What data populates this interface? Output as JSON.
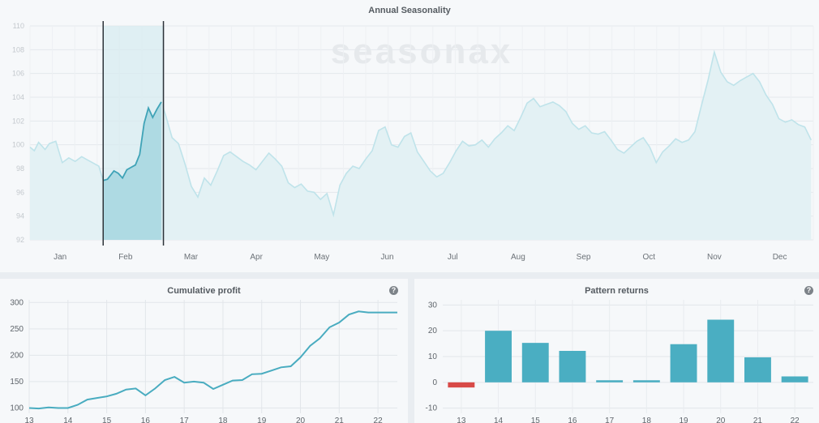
{
  "top_chart": {
    "title": "Annual Seasonality",
    "watermark": "seasonax",
    "chart_data": {
      "type": "line",
      "title": "Annual Seasonality",
      "x_ticks": [
        "Jan",
        "Feb",
        "Mar",
        "Apr",
        "May",
        "Jun",
        "Jul",
        "Aug",
        "Sep",
        "Oct",
        "Nov",
        "Dec"
      ],
      "y_ticks": [
        92,
        94,
        96,
        98,
        100,
        102,
        104,
        106,
        108,
        110
      ],
      "ylim": [
        92,
        110
      ],
      "xlim": [
        1,
        365
      ],
      "grid": true,
      "highlight_range": [
        35,
        63
      ],
      "series_x": [
        1,
        3,
        5,
        8,
        10,
        13,
        16,
        19,
        22,
        25,
        27,
        30,
        33,
        35,
        37,
        40,
        42,
        44,
        46,
        48,
        50,
        52,
        54,
        56,
        58,
        60,
        62,
        64,
        67,
        70,
        73,
        76,
        79,
        82,
        85,
        88,
        91,
        94,
        97,
        100,
        103,
        106,
        109,
        112,
        115,
        118,
        121,
        124,
        127,
        130,
        133,
        136,
        139,
        142,
        145,
        148,
        151,
        154,
        157,
        160,
        163,
        166,
        169,
        172,
        175,
        178,
        181,
        184,
        187,
        190,
        193,
        196,
        199,
        202,
        205,
        208,
        211,
        214,
        217,
        220,
        223,
        226,
        229,
        232,
        235,
        238,
        241,
        244,
        247,
        250,
        253,
        256,
        259,
        262,
        265,
        268,
        271,
        274,
        277,
        280,
        283,
        286,
        289,
        292,
        295,
        298,
        301,
        304,
        307,
        310,
        313,
        316,
        319,
        322,
        325,
        328,
        331,
        334,
        337,
        340,
        343,
        346,
        349,
        352,
        355,
        358,
        361,
        364
      ],
      "series_y": [
        99.8,
        99.5,
        100.2,
        99.6,
        100.1,
        100.3,
        98.5,
        98.9,
        98.6,
        99.0,
        98.8,
        98.5,
        98.2,
        97.0,
        97.1,
        97.8,
        97.6,
        97.2,
        97.9,
        98.1,
        98.3,
        99.2,
        101.8,
        103.1,
        102.3,
        103.0,
        103.6,
        102.5,
        100.6,
        100.1,
        98.4,
        96.5,
        95.6,
        97.2,
        96.6,
        97.8,
        99.1,
        99.4,
        99.0,
        98.6,
        98.3,
        97.9,
        98.6,
        99.3,
        98.8,
        98.2,
        96.8,
        96.4,
        96.7,
        96.1,
        96.0,
        95.4,
        95.9,
        94.1,
        96.6,
        97.6,
        98.2,
        98.0,
        98.8,
        99.5,
        101.2,
        101.5,
        100.0,
        99.8,
        100.7,
        101.0,
        99.4,
        98.6,
        97.8,
        97.3,
        97.6,
        98.5,
        99.5,
        100.3,
        99.9,
        100.0,
        100.4,
        99.8,
        100.5,
        101.0,
        101.6,
        101.2,
        102.3,
        103.5,
        103.9,
        103.2,
        103.4,
        103.6,
        103.3,
        102.8,
        101.8,
        101.3,
        101.6,
        101.0,
        100.9,
        101.1,
        100.4,
        99.6,
        99.3,
        99.8,
        100.3,
        100.6,
        99.8,
        98.5,
        99.4,
        99.9,
        100.5,
        100.2,
        100.4,
        101.1,
        103.3,
        105.4,
        107.8,
        106.1,
        105.3,
        105.0,
        105.4,
        105.7,
        106.0,
        105.3,
        104.2,
        103.4,
        102.2,
        101.9,
        102.1,
        101.7,
        101.5,
        100.4
      ]
    }
  },
  "cumulative": {
    "title": "Cumulative profit",
    "help_icon": "question-circle-icon",
    "chart_data": {
      "type": "line",
      "title": "Cumulative profit",
      "x_ticks": [
        "13",
        "14",
        "15",
        "16",
        "17",
        "18",
        "19",
        "20",
        "21",
        "22"
      ],
      "y_ticks": [
        100,
        150,
        200,
        250,
        300
      ],
      "ylim": [
        90,
        305
      ],
      "xlim": [
        13,
        22.5
      ],
      "grid": true,
      "x": [
        13,
        13.25,
        13.5,
        13.75,
        14,
        14.25,
        14.5,
        14.75,
        15,
        15.25,
        15.5,
        15.75,
        16,
        16.25,
        16.5,
        16.75,
        17,
        17.25,
        17.5,
        17.75,
        18,
        18.25,
        18.5,
        18.75,
        19,
        19.25,
        19.5,
        19.75,
        20,
        20.25,
        20.5,
        20.75,
        21,
        21.25,
        21.5,
        21.75,
        22,
        22.25,
        22.5
      ],
      "y": [
        100,
        99,
        101,
        100,
        100,
        106,
        116,
        119,
        122,
        127,
        135,
        137,
        124,
        137,
        153,
        159,
        148,
        150,
        148,
        136,
        144,
        152,
        153,
        164,
        165,
        171,
        177,
        179,
        196,
        218,
        232,
        253,
        262,
        277,
        283,
        281,
        281,
        281,
        281
      ]
    }
  },
  "pattern": {
    "title": "Pattern returns",
    "help_icon": "question-circle-icon",
    "chart_data": {
      "type": "bar",
      "title": "Pattern returns",
      "categories": [
        "13",
        "14",
        "15",
        "16",
        "17",
        "18",
        "19",
        "20",
        "21",
        "22"
      ],
      "values": [
        -2,
        20,
        15.3,
        12.2,
        0.8,
        0.8,
        14.8,
        24.3,
        9.7,
        2.3
      ],
      "y_ticks": [
        -10,
        0,
        10,
        20,
        30
      ],
      "ylim": [
        -12,
        32
      ],
      "grid": true,
      "positive_color": "#4aaec2",
      "negative_color": "#d84a47"
    }
  }
}
